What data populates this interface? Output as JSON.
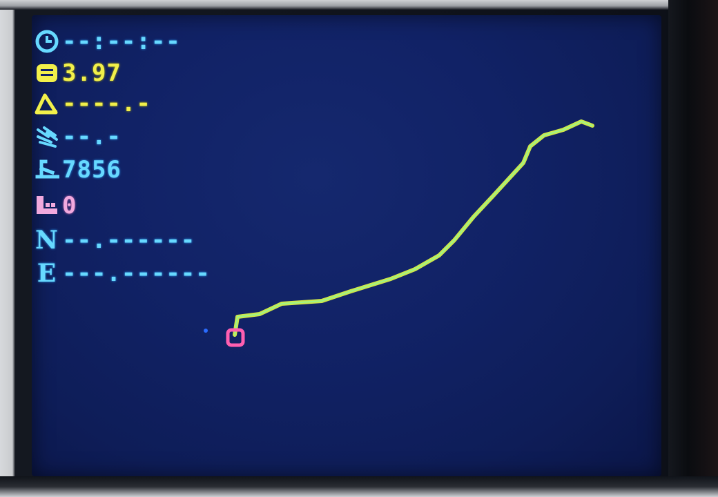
{
  "status": {
    "time": "--:--:--",
    "battery": "3.97",
    "altitude": "----.-",
    "speed": "--.-",
    "distance": "7856",
    "satellites": "0",
    "latitude": "--.------",
    "longitude": "---.------"
  },
  "labels": {
    "lat_letter": "N",
    "lon_letter": "E"
  },
  "icons": {
    "time": "clock-icon",
    "battery": "battery-icon",
    "altitude": "mountain-icon",
    "speed": "wind-icon",
    "distance": "distance-icon",
    "satellites": "satellite-icon"
  },
  "colors": {
    "screen_bg": "#112266",
    "cyan": "#67d9ff",
    "yellow": "#f2f04a",
    "pink": "#f2a9de",
    "track": "#d8f24a",
    "start_marker": "#ff5fb0"
  }
}
